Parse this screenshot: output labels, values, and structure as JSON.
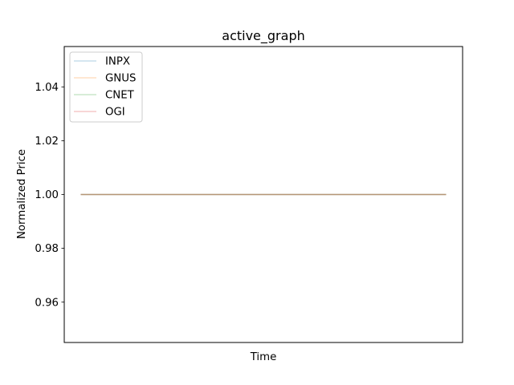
{
  "chart_data": {
    "type": "line",
    "title": "active_graph",
    "xlabel": "Time",
    "ylabel": "Normalized Price",
    "ylim": [
      0.945,
      1.055
    ],
    "yticks": [
      0.96,
      0.98,
      1.0,
      1.02,
      1.04
    ],
    "ytick_labels": [
      "0.96",
      "0.98",
      "1.00",
      "1.02",
      "1.04"
    ],
    "x": [
      0,
      1
    ],
    "xlim": [
      -0.045,
      1.045
    ],
    "grid": false,
    "legend_position": "upper-left",
    "series": [
      {
        "name": "INPX",
        "color": "#1f77b4",
        "alpha": 0.25,
        "values": [
          1.0,
          1.0
        ]
      },
      {
        "name": "GNUS",
        "color": "#ff7f0e",
        "alpha": 0.25,
        "values": [
          1.0,
          1.0
        ]
      },
      {
        "name": "CNET",
        "color": "#2ca02c",
        "alpha": 0.25,
        "values": [
          1.0,
          1.0
        ]
      },
      {
        "name": "OGI",
        "color": "#d62728",
        "alpha": 0.25,
        "values": [
          1.0,
          1.0
        ]
      }
    ]
  }
}
